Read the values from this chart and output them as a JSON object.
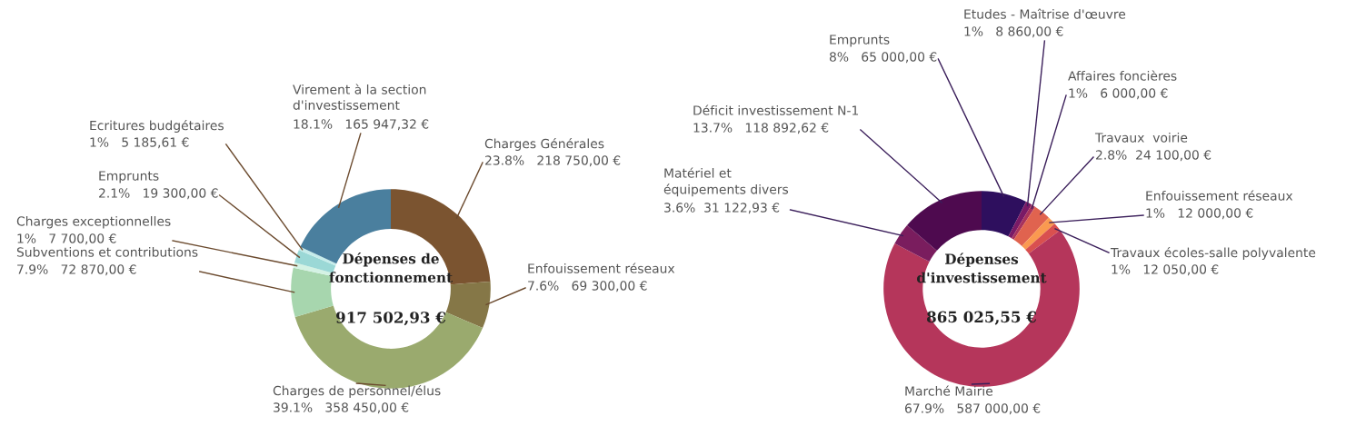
{
  "chart_data": [
    {
      "type": "donut",
      "title": "Dépenses de\nfonctionnement",
      "annotations": [
        "917 502,93 €"
      ],
      "categories": [
        "Charges Générales",
        "Enfouissement réseaux",
        "Charges de personnel/élus",
        "Subventions et contributions",
        "Charges exceptionnelles",
        "Emprunts",
        "Ecritures budgétaires",
        "Virement à la section\nd'investissement"
      ],
      "values": [
        218750.0,
        69300.0,
        358450.0,
        72870.0,
        7700.0,
        19300.0,
        5185.61,
        165947.32
      ],
      "value_labels": [
        "23.8%   218 750,00 €",
        "7.6%   69 300,00 €",
        "39.1%   358 450,00 €",
        "7.9%   72 870,00 €",
        "1%   7 700,00 €",
        "2.1%   19 300,00 €",
        "1%   5 185,61 €",
        "18.1%   165 947,32 €"
      ],
      "colors": [
        "#7b5430",
        "#857747",
        "#9aaa6e",
        "#a7d6ae",
        "#d4f2e4",
        "#9bd8d6",
        "#c6ecea",
        "#4a7f9e"
      ]
    },
    {
      "type": "donut",
      "title": "Dépenses\nd'investissement",
      "annotations": [
        "865 025,55 €"
      ],
      "categories": [
        "Emprunts",
        "Etudes - Maîtrise d'œuvre",
        "Affaires foncières",
        "Travaux  voirie",
        "Enfouissement réseaux",
        "Travaux écoles-salle polyvalente",
        "Marché Mairie",
        "Matériel et\néquipements divers",
        "Déficit investissement N-1"
      ],
      "values": [
        65000.0,
        8860.0,
        6000.0,
        24100.0,
        12000.0,
        12050.0,
        587000.0,
        31122.93,
        118892.62
      ],
      "value_labels": [
        "8%   65 000,00 €",
        "1%   8 860,00 €",
        "1%   6 000,00 €",
        "2.8%  24 100,00 €",
        "1%   12 000,00 €",
        "1%   12 050,00 €",
        "67.9%   587 000,00 €",
        "3.6%  31 122,93 €",
        "13.7%   118 892,62 €"
      ],
      "colors": [
        "#2e0f5e",
        "#7a1a66",
        "#a8325c",
        "#e0634f",
        "#fa9a50",
        "#d9504f",
        "#b5365b",
        "#7a1d5e",
        "#4e0a4f"
      ]
    }
  ]
}
